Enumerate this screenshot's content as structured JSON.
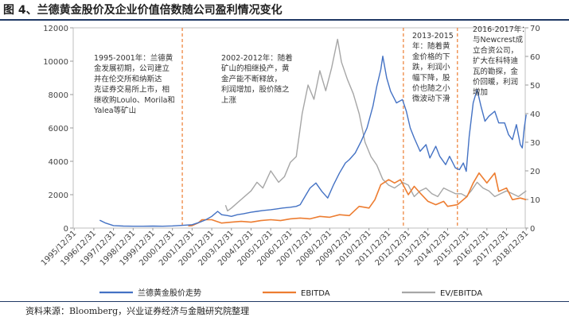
{
  "figure": {
    "title": "图 4、兰德黄金股价及企业价值倍数随公司盈利情况变化",
    "source": "资料来源：Bloomberg，兴业证券经济与金融研究院整理"
  },
  "chart_data": {
    "type": "line",
    "x_categories": [
      "1995/12/31",
      "1996/12/31",
      "1997/12/31",
      "1998/12/31",
      "1999/12/31",
      "2000/12/31",
      "2001/12/31",
      "2002/12/31",
      "2003/12/31",
      "2004/12/31",
      "2005/12/31",
      "2006/12/31",
      "2007/12/31",
      "2008/12/31",
      "2009/12/31",
      "2010/12/31",
      "2011/12/31",
      "2012/12/31",
      "2013/12/31",
      "2014/12/31",
      "2015/12/31",
      "2016/12/31",
      "2017/12/31",
      "2018/12/31"
    ],
    "left_axis": {
      "min": 0,
      "max": 12000,
      "ticks": [
        0,
        2000,
        4000,
        6000,
        8000,
        10000,
        12000
      ]
    },
    "right_axis": {
      "min": 0,
      "max": 70,
      "ticks": [
        0,
        10,
        20,
        30,
        40,
        50,
        60,
        70
      ]
    },
    "grid": false,
    "legend_position": "bottom",
    "series": [
      {
        "name": "兰德黄金股价走势",
        "axis": "left",
        "color": "#4472c4",
        "points": [
          [
            1997.3,
            470
          ],
          [
            1997.6,
            300
          ],
          [
            1998.0,
            150
          ],
          [
            1998.5,
            120
          ],
          [
            1999.0,
            110
          ],
          [
            1999.5,
            110
          ],
          [
            2000.0,
            120
          ],
          [
            2000.5,
            110
          ],
          [
            2001.0,
            130
          ],
          [
            2001.5,
            160
          ],
          [
            2002.0,
            200
          ],
          [
            2002.4,
            350
          ],
          [
            2002.7,
            500
          ],
          [
            2003.0,
            700
          ],
          [
            2003.3,
            1000
          ],
          [
            2003.5,
            800
          ],
          [
            2003.8,
            750
          ],
          [
            2004.0,
            700
          ],
          [
            2004.3,
            800
          ],
          [
            2004.6,
            850
          ],
          [
            2005.0,
            950
          ],
          [
            2005.3,
            1000
          ],
          [
            2005.6,
            1050
          ],
          [
            2006.0,
            1100
          ],
          [
            2006.3,
            1150
          ],
          [
            2006.6,
            1200
          ],
          [
            2007.0,
            1250
          ],
          [
            2007.3,
            1300
          ],
          [
            2007.5,
            1400
          ],
          [
            2007.8,
            2000
          ],
          [
            2008.0,
            2400
          ],
          [
            2008.3,
            2700
          ],
          [
            2008.6,
            2200
          ],
          [
            2008.9,
            1800
          ],
          [
            2009.2,
            2600
          ],
          [
            2009.5,
            3300
          ],
          [
            2009.8,
            3900
          ],
          [
            2010.0,
            4100
          ],
          [
            2010.3,
            4500
          ],
          [
            2010.6,
            5200
          ],
          [
            2010.9,
            6000
          ],
          [
            2011.2,
            7300
          ],
          [
            2011.4,
            8500
          ],
          [
            2011.6,
            9500
          ],
          [
            2011.7,
            10300
          ],
          [
            2011.9,
            9000
          ],
          [
            2012.1,
            8200
          ],
          [
            2012.4,
            7500
          ],
          [
            2012.7,
            7700
          ],
          [
            2012.9,
            7000
          ],
          [
            2013.1,
            6000
          ],
          [
            2013.3,
            5400
          ],
          [
            2013.6,
            4600
          ],
          [
            2013.9,
            5000
          ],
          [
            2014.1,
            4200
          ],
          [
            2014.4,
            4900
          ],
          [
            2014.6,
            4300
          ],
          [
            2014.9,
            3800
          ],
          [
            2015.1,
            4300
          ],
          [
            2015.4,
            3600
          ],
          [
            2015.6,
            3500
          ],
          [
            2015.8,
            3900
          ],
          [
            2015.95,
            3400
          ],
          [
            2016.1,
            5500
          ],
          [
            2016.3,
            7500
          ],
          [
            2016.5,
            8300
          ],
          [
            2016.7,
            7300
          ],
          [
            2016.9,
            6400
          ],
          [
            2017.1,
            6700
          ],
          [
            2017.4,
            7000
          ],
          [
            2017.6,
            6300
          ],
          [
            2017.9,
            6300
          ],
          [
            2018.1,
            5600
          ],
          [
            2018.3,
            5300
          ],
          [
            2018.5,
            6200
          ],
          [
            2018.7,
            5000
          ],
          [
            2018.8,
            4800
          ],
          [
            2018.9,
            6000
          ],
          [
            2019.0,
            6800
          ]
        ]
      },
      {
        "name": "EBITDA",
        "axis": "left",
        "color": "#ed7d31",
        "points": [
          [
            2001.8,
            130
          ],
          [
            2002.0,
            150
          ],
          [
            2002.3,
            300
          ],
          [
            2002.5,
            500
          ],
          [
            2003.0,
            500
          ],
          [
            2003.5,
            300
          ],
          [
            2004.0,
            350
          ],
          [
            2004.5,
            400
          ],
          [
            2005.0,
            350
          ],
          [
            2005.5,
            450
          ],
          [
            2006.0,
            500
          ],
          [
            2006.5,
            450
          ],
          [
            2007.0,
            550
          ],
          [
            2007.5,
            600
          ],
          [
            2008.0,
            550
          ],
          [
            2008.5,
            700
          ],
          [
            2009.0,
            650
          ],
          [
            2009.5,
            800
          ],
          [
            2010.0,
            750
          ],
          [
            2010.5,
            1300
          ],
          [
            2011.0,
            1200
          ],
          [
            2011.3,
            1700
          ],
          [
            2011.6,
            2600
          ],
          [
            2012.0,
            2900
          ],
          [
            2012.3,
            2700
          ],
          [
            2012.6,
            2900
          ],
          [
            2013.0,
            2000
          ],
          [
            2013.3,
            2500
          ],
          [
            2013.6,
            2100
          ],
          [
            2014.0,
            1600
          ],
          [
            2014.4,
            1400
          ],
          [
            2014.8,
            1600
          ],
          [
            2015.0,
            1300
          ],
          [
            2015.5,
            1400
          ],
          [
            2016.0,
            1900
          ],
          [
            2016.3,
            2700
          ],
          [
            2016.6,
            3300
          ],
          [
            2017.0,
            2700
          ],
          [
            2017.4,
            3300
          ],
          [
            2017.6,
            2200
          ],
          [
            2018.0,
            2400
          ],
          [
            2018.3,
            1700
          ],
          [
            2018.7,
            1800
          ],
          [
            2019.0,
            1700
          ]
        ]
      },
      {
        "name": "EV/EBITDA",
        "axis": "right",
        "color": "#a6a6a6",
        "points": [
          [
            2003.7,
            8
          ],
          [
            2003.8,
            6
          ],
          [
            2004.0,
            7
          ],
          [
            2004.5,
            10
          ],
          [
            2005.0,
            13
          ],
          [
            2005.3,
            16
          ],
          [
            2005.6,
            14
          ],
          [
            2006.0,
            20
          ],
          [
            2006.4,
            16
          ],
          [
            2006.7,
            18
          ],
          [
            2007.0,
            23
          ],
          [
            2007.3,
            25
          ],
          [
            2007.6,
            40
          ],
          [
            2007.9,
            50
          ],
          [
            2008.2,
            45
          ],
          [
            2008.5,
            55
          ],
          [
            2008.8,
            48
          ],
          [
            2009.1,
            56
          ],
          [
            2009.4,
            66
          ],
          [
            2009.6,
            58
          ],
          [
            2009.9,
            52
          ],
          [
            2010.2,
            47
          ],
          [
            2010.5,
            40
          ],
          [
            2010.8,
            30
          ],
          [
            2011.1,
            25
          ],
          [
            2011.4,
            22
          ],
          [
            2011.7,
            17
          ],
          [
            2012.0,
            15
          ],
          [
            2012.3,
            14
          ],
          [
            2012.7,
            16
          ],
          [
            2013.0,
            15
          ],
          [
            2013.3,
            11
          ],
          [
            2013.6,
            13
          ],
          [
            2013.9,
            14
          ],
          [
            2014.2,
            12
          ],
          [
            2014.5,
            11
          ],
          [
            2014.8,
            14
          ],
          [
            2015.1,
            13
          ],
          [
            2015.4,
            12
          ],
          [
            2015.7,
            12
          ],
          [
            2015.95,
            11
          ],
          [
            2016.2,
            13
          ],
          [
            2016.5,
            16
          ],
          [
            2016.8,
            14
          ],
          [
            2017.1,
            13
          ],
          [
            2017.4,
            11
          ],
          [
            2017.7,
            12
          ],
          [
            2018.0,
            13
          ],
          [
            2018.3,
            12
          ],
          [
            2018.6,
            11
          ],
          [
            2018.8,
            12
          ],
          [
            2019.0,
            13
          ]
        ]
      }
    ],
    "vlines": [
      2001.5,
      2012.75,
      2015.5
    ],
    "annotations": [
      {
        "lines": [
          "1995-2001年：兰德黄",
          "金发展初期，公司建立",
          "并在伦交所和纳斯达",
          "克证券交易所上市，相",
          "继收购Loulo、Morila和",
          "Yalea等矿山"
        ]
      },
      {
        "lines": [
          "2002-2012年：随着",
          "矿山的相继投产，黄",
          "金产能不断释放，",
          "利润增加，股价随之",
          "上涨"
        ]
      },
      {
        "lines": [
          "2013-2015",
          "年：随着黄",
          "金价格的下",
          "跌，利润小",
          "幅下降，股",
          "价也随之小",
          "微波动下滑"
        ]
      },
      {
        "lines": [
          "2016-2017年：",
          "与Newcrest成",
          "立合资公司，",
          "扩大在科特迪",
          "瓦的勘探，金",
          "价回暖，利润",
          "增加"
        ]
      }
    ]
  }
}
